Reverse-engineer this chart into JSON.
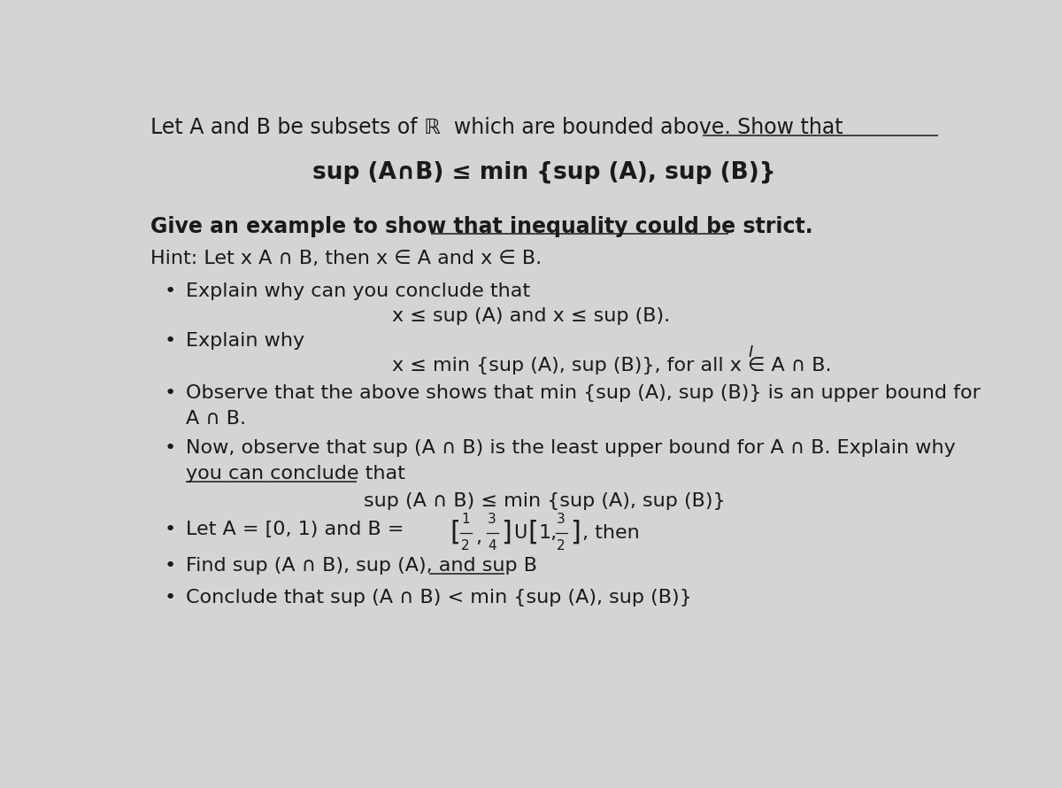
{
  "bg_color": "#d4d4d4",
  "text_color": "#1a1a1a",
  "fig_width": 12.0,
  "fig_height": 8.9,
  "title_line": "Let A and B be subsets of ℝ  which are bounded above. Show that",
  "formula1": "sup (A∩B) ≤ min {sup (A), sup (B)}",
  "give_example": "Give an example to show that inequality could be strict.",
  "hint_line": "Hint: Let x A ∩ B, then x ∈ A and x ∈ B.",
  "bullet1_text": "Explain why can you conclude that",
  "bullet1_sub": "x ≤ sup (A) and x ≤ sup (B).",
  "bullet2_text": "Explain why",
  "bullet2_sub": "x ≤ min {sup (A), sup (B)}, for all x ∈ A ∩ B.",
  "bullet3_text": "Observe that the above shows that min {sup (A), sup (B)} is an upper bound for",
  "bullet3_cont": "A ∩ B.",
  "bullet4_text": "Now, observe that sup (A ∩ B) is the least upper bound for A ∩ B. Explain why",
  "bullet4_cont": "you can conclude that",
  "formula2": "sup (A ∩ B) ≤ min {sup (A), sup (B)}",
  "bullet5_prefix": "Let A = [0, 1) and B = ",
  "bullet5_suffix": ", then",
  "bullet6_text": "Find sup (A ∩ B), sup (A), and sup B",
  "bullet7_text": "Conclude that sup (A ∩ B) < min {sup (A), sup (B)}"
}
